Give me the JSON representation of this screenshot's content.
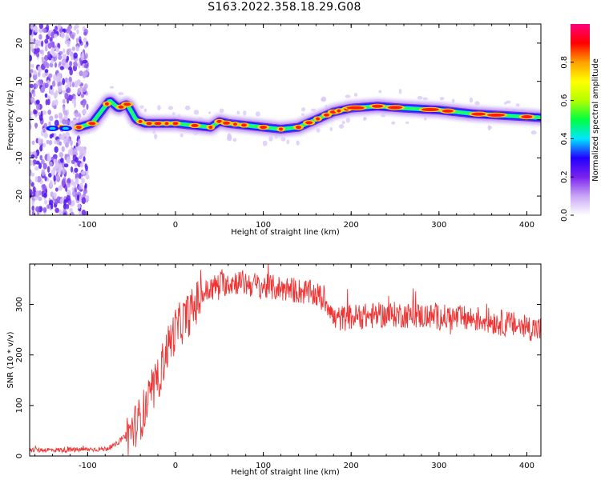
{
  "title": "S163.2022.358.18.29.G08",
  "chart_data": [
    {
      "type": "heatmap",
      "xlabel": "Height of straight line (km)",
      "ylabel": "Frequency (Hz)",
      "xlim": [
        -166,
        416
      ],
      "ylim": [
        -25,
        25
      ],
      "x_ticks": [
        -100,
        0,
        100,
        200,
        300,
        400
      ],
      "y_ticks": [
        -20,
        -10,
        0,
        10,
        20
      ],
      "colorbar": {
        "label": "Normalized spectral amplitude",
        "range": [
          0,
          1
        ],
        "ticks": [
          0.0,
          0.2,
          0.4,
          0.6,
          0.8
        ],
        "tick_labels": [
          "0.0",
          "0.2",
          "0.4",
          "0.6",
          "0.8"
        ],
        "colormap": [
          "#ffffff",
          "#c9a6f5",
          "#7a22ee",
          "#2200ff",
          "#00e5ff",
          "#00ff40",
          "#b4ff00",
          "#ffff00",
          "#ffa000",
          "#ff0000",
          "#ff007f"
        ]
      },
      "ridge": {
        "x": [
          -110,
          -95,
          -85,
          -75,
          -65,
          -55,
          -45,
          -35,
          -25,
          -15,
          0,
          20,
          40,
          50,
          60,
          80,
          100,
          120,
          140,
          160,
          180,
          200,
          230,
          260,
          300,
          340,
          380,
          416
        ],
        "y": [
          -2,
          -1,
          2,
          5,
          3,
          4,
          0,
          -1,
          -1,
          -1,
          -1,
          -1.5,
          -2,
          -0.5,
          -1,
          -1.5,
          -2,
          -2.5,
          -2,
          0,
          2,
          3,
          3.5,
          3,
          2.5,
          1.5,
          1,
          0.5
        ]
      },
      "noise_region_x": [
        -166,
        -100
      ]
    },
    {
      "type": "line",
      "xlabel": "Height of straight line (km)",
      "ylabel": "SNR (10 * v/v)",
      "xlim": [
        -166,
        416
      ],
      "ylim": [
        0,
        380
      ],
      "x_ticks": [
        -100,
        0,
        100,
        200,
        300,
        400
      ],
      "y_ticks": [
        0,
        100,
        200,
        300
      ],
      "color": "#ee3333",
      "series": [
        {
          "x": [
            -166,
            -120,
            -80,
            -70,
            -60,
            -50,
            -40,
            -30,
            -20,
            -10,
            0,
            10,
            20,
            30,
            50,
            70,
            100,
            130,
            160,
            175,
            180,
            200,
            250,
            300,
            350,
            400,
            416
          ],
          "y": [
            12,
            12,
            14,
            20,
            35,
            50,
            75,
            110,
            150,
            210,
            250,
            270,
            290,
            320,
            340,
            345,
            335,
            330,
            320,
            300,
            270,
            275,
            280,
            275,
            270,
            255,
            250
          ]
        }
      ]
    }
  ]
}
